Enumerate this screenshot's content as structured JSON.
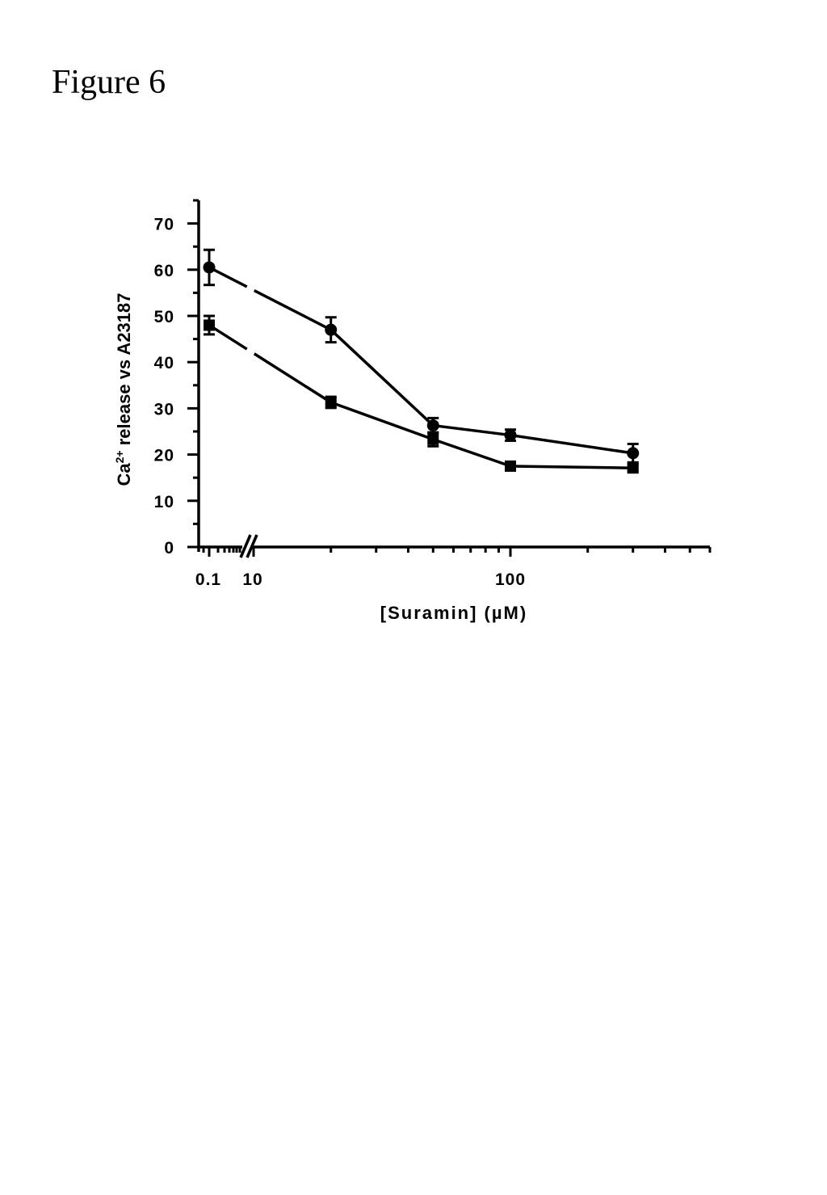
{
  "figure_title": "Figure 6",
  "chart_data": {
    "type": "line",
    "title": "",
    "xlabel": "[Suramin] (µM)",
    "ylabel": {
      "prefix": "Ca",
      "superscript": "2+",
      "suffix": " release vs A23187"
    },
    "x_scale": "log with axis break (0.1 shown before break)",
    "x_tick_labels": [
      "0.1",
      "10",
      "100"
    ],
    "y_ticks": [
      0,
      10,
      20,
      30,
      40,
      50,
      60,
      70
    ],
    "ylim": [
      0,
      75
    ],
    "grid": false,
    "legend": "none",
    "x": [
      0.1,
      20,
      50,
      100,
      300
    ],
    "series": [
      {
        "marker": "circle",
        "values": [
          60.5,
          47.0,
          26.3,
          24.2,
          20.3
        ],
        "errors": [
          3.8,
          2.7,
          1.6,
          1.2,
          2.0
        ]
      },
      {
        "marker": "square",
        "values": [
          48.0,
          31.3,
          23.3,
          17.5,
          17.1
        ],
        "errors": [
          2.0,
          1.2,
          1.5,
          0.6,
          0.7
        ]
      }
    ]
  }
}
